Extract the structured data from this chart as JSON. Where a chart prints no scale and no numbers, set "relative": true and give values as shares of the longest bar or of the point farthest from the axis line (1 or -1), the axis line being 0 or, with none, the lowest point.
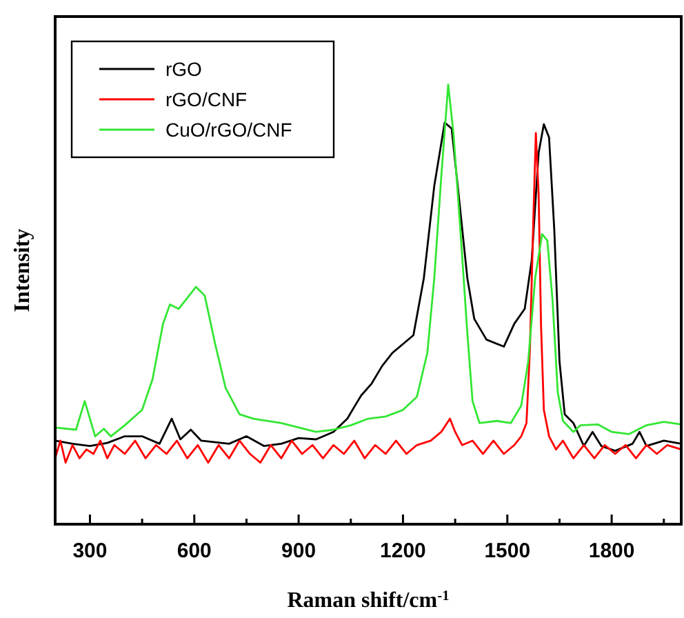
{
  "chart_data": {
    "type": "line",
    "xlabel": "Raman shift/cm$^{-1}$",
    "ylabel": "Intensity",
    "relative": true,
    "legend": "top left",
    "xlim": [
      200,
      2000
    ],
    "xticks": [
      300,
      {
        "value": 450,
        "label": null
      },
      600,
      {
        "value": 750,
        "label": null
      },
      900,
      {
        "value": 1050,
        "label": null
      },
      1200,
      {
        "value": 1350,
        "label": null
      },
      1500,
      {
        "value": 1650,
        "label": null
      },
      1800,
      {
        "value": 1950,
        "label": null
      }
    ],
    "series": [
      {
        "name": "rGO",
        "color": "#000000",
        "x": [
          200,
          250,
          300,
          350,
          400,
          450,
          500,
          535,
          560,
          590,
          620,
          700,
          750,
          800,
          850,
          900,
          950,
          1000,
          1040,
          1060,
          1080,
          1110,
          1140,
          1170,
          1200,
          1230,
          1260,
          1290,
          1320,
          1340,
          1360,
          1385,
          1405,
          1440,
          1490,
          1520,
          1550,
          1570,
          1590,
          1605,
          1620,
          1635,
          1650,
          1665,
          1690,
          1720,
          1745,
          1770,
          1810,
          1860,
          1880,
          1900,
          1950,
          2000
        ],
        "values": [
          0.19,
          0.183,
          0.178,
          0.185,
          0.2,
          0.2,
          0.183,
          0.24,
          0.193,
          0.215,
          0.19,
          0.183,
          0.2,
          0.178,
          0.183,
          0.196,
          0.193,
          0.21,
          0.24,
          0.267,
          0.293,
          0.32,
          0.36,
          0.39,
          0.41,
          0.43,
          0.56,
          0.77,
          0.914,
          0.9,
          0.75,
          0.56,
          0.467,
          0.42,
          0.404,
          0.456,
          0.49,
          0.6,
          0.845,
          0.91,
          0.88,
          0.67,
          0.37,
          0.25,
          0.23,
          0.178,
          0.21,
          0.178,
          0.167,
          0.183,
          0.21,
          0.178,
          0.19,
          0.183
        ]
      },
      {
        "name": "rGO/CNF",
        "color": "#ff0000",
        "x": [
          200,
          215,
          230,
          250,
          270,
          290,
          310,
          330,
          350,
          370,
          400,
          430,
          460,
          490,
          520,
          550,
          580,
          610,
          640,
          670,
          700,
          730,
          760,
          790,
          820,
          850,
          880,
          910,
          940,
          970,
          1000,
          1030,
          1060,
          1090,
          1120,
          1150,
          1180,
          1210,
          1240,
          1280,
          1310,
          1335,
          1350,
          1370,
          1400,
          1430,
          1460,
          1490,
          1520,
          1540,
          1555,
          1565,
          1575,
          1582,
          1590,
          1597,
          1605,
          1620,
          1640,
          1660,
          1690,
          1720,
          1750,
          1780,
          1810,
          1840,
          1870,
          1900,
          1930,
          1960,
          2000
        ],
        "values": [
          0.15,
          0.19,
          0.14,
          0.18,
          0.15,
          0.17,
          0.16,
          0.19,
          0.15,
          0.18,
          0.16,
          0.19,
          0.15,
          0.18,
          0.16,
          0.19,
          0.15,
          0.18,
          0.14,
          0.18,
          0.15,
          0.19,
          0.16,
          0.14,
          0.18,
          0.15,
          0.19,
          0.16,
          0.18,
          0.15,
          0.18,
          0.16,
          0.19,
          0.15,
          0.18,
          0.16,
          0.19,
          0.16,
          0.18,
          0.19,
          0.21,
          0.24,
          0.21,
          0.18,
          0.19,
          0.16,
          0.19,
          0.16,
          0.18,
          0.2,
          0.23,
          0.4,
          0.7,
          0.89,
          0.75,
          0.45,
          0.26,
          0.2,
          0.17,
          0.19,
          0.15,
          0.18,
          0.15,
          0.18,
          0.16,
          0.18,
          0.15,
          0.18,
          0.16,
          0.18,
          0.17
        ]
      },
      {
        "name": "CuO/rGO/CNF",
        "color": "#33e633",
        "x": [
          200,
          260,
          285,
          300,
          315,
          340,
          360,
          400,
          450,
          480,
          510,
          530,
          555,
          580,
          605,
          630,
          660,
          690,
          730,
          770,
          850,
          950,
          1000,
          1050,
          1100,
          1150,
          1200,
          1240,
          1270,
          1290,
          1310,
          1330,
          1345,
          1365,
          1385,
          1400,
          1420,
          1470,
          1510,
          1540,
          1560,
          1580,
          1600,
          1615,
          1630,
          1645,
          1660,
          1690,
          1710,
          1760,
          1800,
          1850,
          1900,
          1950,
          2000
        ],
        "values": [
          0.22,
          0.215,
          0.28,
          0.24,
          0.2,
          0.217,
          0.2,
          0.225,
          0.26,
          0.33,
          0.456,
          0.5,
          0.49,
          0.515,
          0.54,
          0.52,
          0.41,
          0.31,
          0.25,
          0.24,
          0.23,
          0.21,
          0.215,
          0.225,
          0.24,
          0.245,
          0.26,
          0.29,
          0.39,
          0.56,
          0.79,
          1,
          0.89,
          0.67,
          0.435,
          0.28,
          0.23,
          0.235,
          0.23,
          0.27,
          0.37,
          0.56,
          0.66,
          0.645,
          0.51,
          0.3,
          0.235,
          0.21,
          0.225,
          0.227,
          0.21,
          0.205,
          0.225,
          0.233,
          0.227
        ]
      }
    ]
  }
}
